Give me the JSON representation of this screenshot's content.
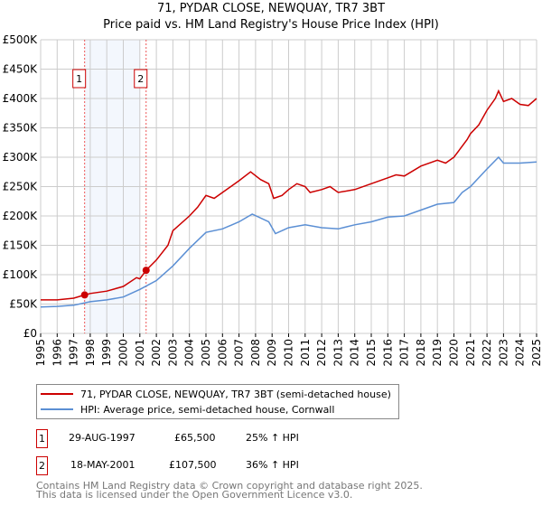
{
  "chart_data": {
    "type": "line",
    "title": "71, PYDAR CLOSE, NEWQUAY, TR7 3BT",
    "subtitle": "Price paid vs. HM Land Registry's House Price Index (HPI)",
    "xlim": [
      1995,
      2025
    ],
    "ylim": [
      0,
      500000
    ],
    "yticks": [
      "£0",
      "£50K",
      "£100K",
      "£150K",
      "£200K",
      "£250K",
      "£300K",
      "£350K",
      "£400K",
      "£450K",
      "£500K"
    ],
    "xticks": [
      "1995",
      "1996",
      "1997",
      "1998",
      "1999",
      "2000",
      "2001",
      "2002",
      "2003",
      "2004",
      "2005",
      "2006",
      "2007",
      "2008",
      "2009",
      "2010",
      "2011",
      "2012",
      "2013",
      "2014",
      "2015",
      "2016",
      "2017",
      "2018",
      "2019",
      "2020",
      "2021",
      "2022",
      "2023",
      "2024",
      "2025"
    ],
    "grid": true,
    "shaded_range": [
      1997.66,
      2001.0
    ],
    "series": [
      {
        "name": "71, PYDAR CLOSE, NEWQUAY, TR7 3BT (semi-detached house)",
        "color": "#cc0000",
        "x": [
          1995,
          1996,
          1997,
          1997.66,
          1998,
          1999,
          2000,
          2000.8,
          2001.0,
          2001.38,
          2002,
          2002.7,
          2003,
          2004,
          2004.5,
          2005,
          2005.5,
          2006,
          2006.5,
          2007,
          2007.7,
          2008.3,
          2008.8,
          2009.1,
          2009.6,
          2010,
          2010.5,
          2011,
          2011.3,
          2012,
          2012.5,
          2013,
          2014,
          2015,
          2016,
          2016.5,
          2017,
          2018,
          2019,
          2019.5,
          2020,
          2020.8,
          2021,
          2021.5,
          2022,
          2022.5,
          2022.7,
          2023,
          2023.5,
          2024,
          2024.5,
          2025
        ],
        "y": [
          57000,
          57000,
          60000,
          65500,
          68000,
          72000,
          80000,
          95000,
          93000,
          107500,
          125000,
          150000,
          175000,
          200000,
          215000,
          235000,
          230000,
          240000,
          250000,
          260000,
          275000,
          262000,
          255000,
          230000,
          235000,
          245000,
          255000,
          250000,
          240000,
          245000,
          250000,
          240000,
          245000,
          255000,
          265000,
          270000,
          268000,
          285000,
          295000,
          290000,
          300000,
          330000,
          340000,
          355000,
          380000,
          400000,
          413000,
          395000,
          400000,
          390000,
          388000,
          400000
        ]
      },
      {
        "name": "HPI: Average price, semi-detached house, Cornwall",
        "color": "#5b8fd4",
        "x": [
          1995,
          1996,
          1997,
          1998,
          1999,
          2000,
          2001,
          2002,
          2003,
          2004,
          2005,
          2006,
          2007,
          2007.8,
          2008.8,
          2009.2,
          2010,
          2011,
          2012,
          2013,
          2014,
          2015,
          2016,
          2017,
          2018,
          2019,
          2020,
          2020.5,
          2021,
          2022,
          2022.7,
          2023,
          2024,
          2025
        ],
        "y": [
          45000,
          46000,
          48000,
          54000,
          57000,
          62000,
          75000,
          90000,
          115000,
          145000,
          172000,
          178000,
          190000,
          203000,
          190000,
          170000,
          180000,
          185000,
          180000,
          178000,
          185000,
          190000,
          198000,
          200000,
          210000,
          220000,
          223000,
          240000,
          250000,
          280000,
          300000,
          290000,
          290000,
          292000
        ]
      }
    ],
    "sales": [
      {
        "label": "1",
        "x": 1997.66,
        "y": 65500,
        "date": "29-AUG-1997",
        "price": "£65,500",
        "hpi": "25% ↑ HPI"
      },
      {
        "label": "2",
        "x": 2001.38,
        "y": 107500,
        "date": "18-MAY-2001",
        "price": "£107,500",
        "hpi": "36% ↑ HPI"
      }
    ]
  },
  "footer": {
    "line1": "Contains HM Land Registry data © Crown copyright and database right 2025.",
    "line2": "This data is licensed under the Open Government Licence v3.0."
  }
}
